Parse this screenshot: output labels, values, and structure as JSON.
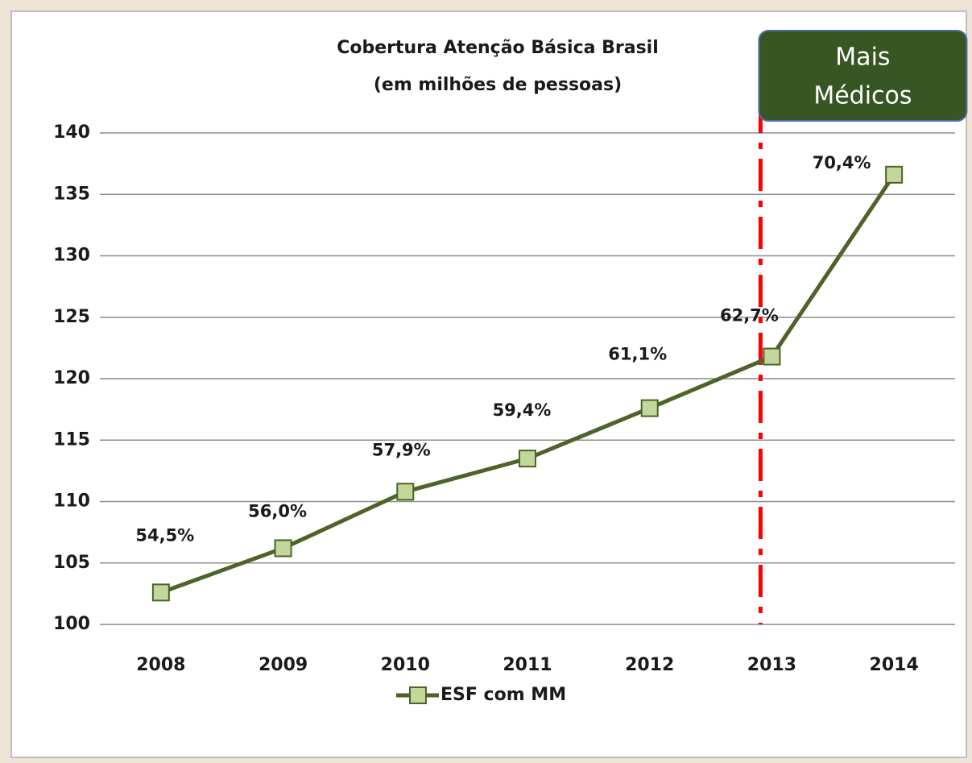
{
  "chart_data": {
    "type": "line",
    "title": [
      "Cobertura Atenção Básica Brasil",
      "(em milhões de pessoas)"
    ],
    "categories": [
      "2008",
      "2009",
      "2010",
      "2011",
      "2012",
      "2013",
      "2014"
    ],
    "series": [
      {
        "name": "ESF com MM",
        "color": "#4f6228",
        "marker_color": "#c3d69b",
        "values": [
          102.6,
          106.2,
          110.8,
          113.5,
          117.6,
          121.8,
          136.6
        ]
      }
    ],
    "point_labels": [
      "54,5%",
      "56,0%",
      "57,9%",
      "59,4%",
      "61,1%",
      "62,7%",
      "70,4%"
    ],
    "ylim": [
      100,
      140
    ],
    "yticks": [
      100,
      105,
      110,
      115,
      120,
      125,
      130,
      135,
      140
    ],
    "grid": true,
    "marker_line": {
      "category": "2013",
      "color": "#ff0000",
      "label": [
        "Mais",
        "Médicos"
      ],
      "box_color": "#375623"
    },
    "legend": "bottom"
  }
}
